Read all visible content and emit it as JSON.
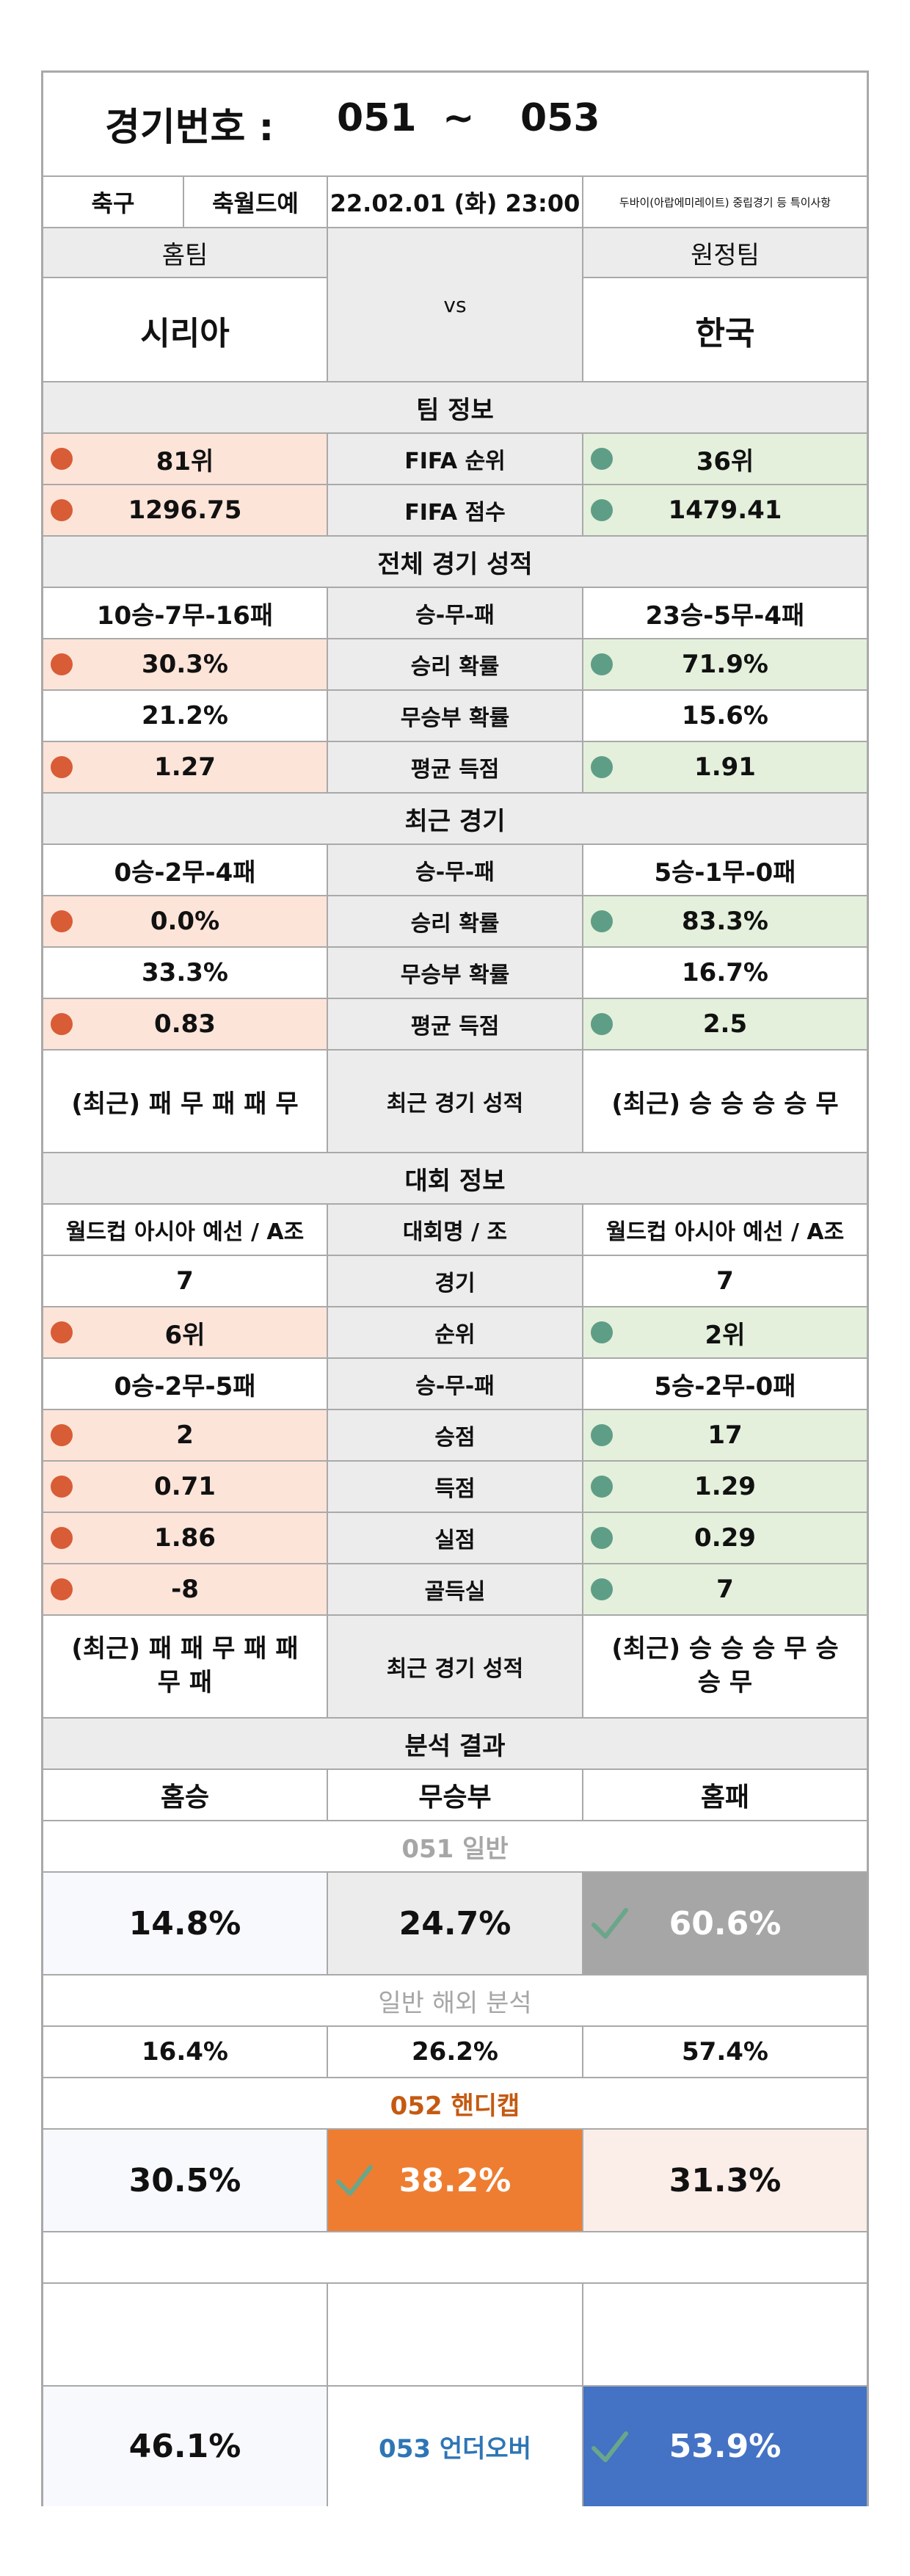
{
  "header": {
    "label": "경기번호 :",
    "from": "051",
    "tilde": "~",
    "to": "053"
  },
  "info": {
    "sport": "축구",
    "league": "축월드예",
    "datetime": "22.02.01 (화) 23:00",
    "note": "두바이(아랍에미레이트) 중립경기 등 특이사항"
  },
  "teams": {
    "home_label": "홈팀",
    "away_label": "원정팀",
    "vs": "vs",
    "home": "시리아",
    "away": "한국"
  },
  "team_info": {
    "title": "팀 정보",
    "rows": [
      {
        "home": "81위",
        "label": "FIFA 순위",
        "away": "36위"
      },
      {
        "home": "1296.75",
        "label": "FIFA 점수",
        "away": "1479.41"
      }
    ]
  },
  "overall": {
    "title": "전체 경기 성적",
    "rows": [
      {
        "home": "10승-7무-16패",
        "label": "승-무-패",
        "away": "23승-5무-4패"
      },
      {
        "home": "30.3%",
        "label": "승리 확률",
        "away": "71.9%"
      },
      {
        "home": "21.2%",
        "label": "무승부 확률",
        "away": "15.6%"
      },
      {
        "home": "1.27",
        "label": "평균 득점",
        "away": "1.91"
      }
    ]
  },
  "recent": {
    "title": "최근 경기",
    "rows": [
      {
        "home": "0승-2무-4패",
        "label": "승-무-패",
        "away": "5승-1무-0패"
      },
      {
        "home": "0.0%",
        "label": "승리 확률",
        "away": "83.3%"
      },
      {
        "home": "33.3%",
        "label": "무승부 확률",
        "away": "16.7%"
      },
      {
        "home": "0.83",
        "label": "평균 득점",
        "away": "2.5"
      }
    ],
    "form": {
      "home": "(최근) 패 무 패 패 무",
      "label": "최근 경기 성적",
      "away": "(최근) 승 승 승 승 무"
    }
  },
  "tournament": {
    "title": "대회 정보",
    "rows": [
      {
        "home": "월드컵 아시아 예선 / A조",
        "label": "대회명 / 조",
        "away": "월드컵 아시아 예선 / A조"
      },
      {
        "home": "7",
        "label": "경기",
        "away": "7"
      },
      {
        "home": "6위",
        "label": "순위",
        "away": "2위"
      },
      {
        "home": "0승-2무-5패",
        "label": "승-무-패",
        "away": "5승-2무-0패"
      },
      {
        "home": "2",
        "label": "승점",
        "away": "17"
      },
      {
        "home": "0.71",
        "label": "득점",
        "away": "1.29"
      },
      {
        "home": "1.86",
        "label": "실점",
        "away": "0.29"
      },
      {
        "home": "-8",
        "label": "골득실",
        "away": "7"
      }
    ],
    "form": {
      "home": "(최근) 패 패 무 패 패 무 패",
      "label": "최근 경기 성적",
      "away": "(최근) 승 승 승 무 승 승 무"
    }
  },
  "analysis": {
    "title": "분석 결과",
    "home_win": "홈승",
    "draw": "무승부",
    "home_loss": "홈패",
    "g051": {
      "title": "051 일반",
      "home": "14.8%",
      "draw": "24.7%",
      "away": "60.6%"
    },
    "overseas": {
      "title": "일반 해외 분석",
      "home": "16.4%",
      "draw": "26.2%",
      "away": "57.4%"
    },
    "g052": {
      "title": "052 핸디캡",
      "home": "30.5%",
      "draw": "38.2%",
      "away": "31.3%"
    },
    "g053": {
      "title": "053 언더오버",
      "under": "46.1%",
      "over": "53.9%"
    }
  },
  "colors": {
    "home_dot": "#d85c36",
    "away_dot": "#5f9e86",
    "pick_gray": "#a6a6a6",
    "pick_orange": "#ee7d31",
    "pick_blue": "#4472c4",
    "handicap_title": "#c55a11",
    "underover_title": "#2e75b6"
  },
  "icons": {
    "pick": "check-icon",
    "home_indicator": "red-dot",
    "away_indicator": "green-dot"
  }
}
